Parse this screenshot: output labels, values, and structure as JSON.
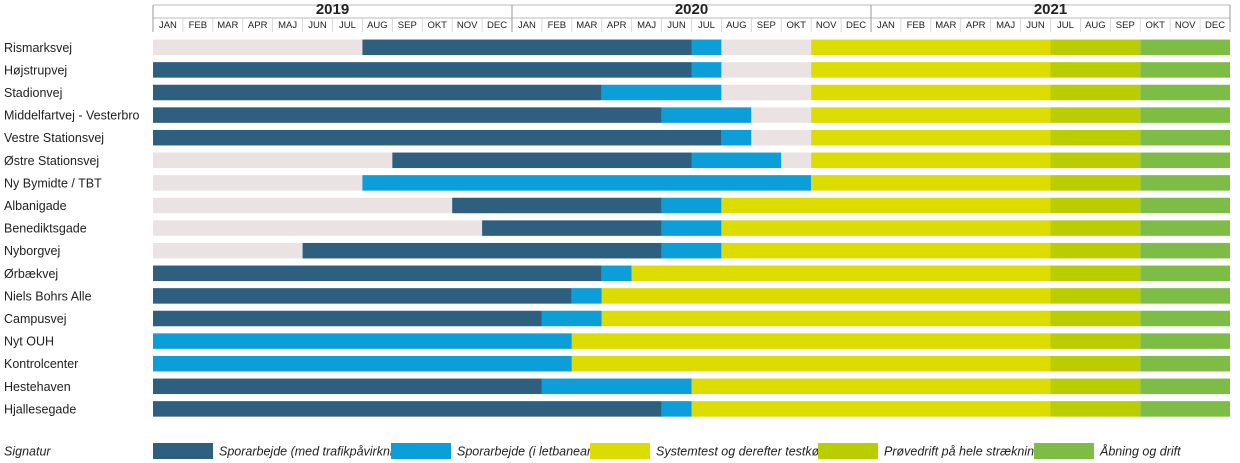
{
  "chart_data": {
    "type": "gantt",
    "years": [
      "2019",
      "2020",
      "2021"
    ],
    "months": [
      "JAN",
      "FEB",
      "MAR",
      "APR",
      "MAJ",
      "JUN",
      "JUL",
      "AUG",
      "SEP",
      "OKT",
      "NOV",
      "DEC"
    ],
    "timeline_start": "2019-01",
    "timeline_end": "2021-12",
    "phases": [
      {
        "key": "idle",
        "label": "",
        "color": "#ebe3e3"
      },
      {
        "key": "spor1",
        "label": "Sporarbejde (med trafikpåvirkning)",
        "color": "#2f5f7f"
      },
      {
        "key": "spor2",
        "label": "Sporarbejde (i letbaneareal)",
        "color": "#0b9ed8"
      },
      {
        "key": "test",
        "label": "Systemtest og derefter testkørsler",
        "color": "#dcdc00"
      },
      {
        "key": "prove",
        "label": "Prøvedrift på hele strækningen",
        "color": "#b9cd00"
      },
      {
        "key": "drift",
        "label": "Åbning og drift",
        "color": "#7dbd45"
      }
    ],
    "legend_title": "Signatur",
    "rows": [
      {
        "name": "Rismarksvej",
        "segments": [
          [
            "idle",
            "2019-01",
            "2019-07"
          ],
          [
            "spor1",
            "2019-08",
            "2020-06"
          ],
          [
            "spor2",
            "2020-07",
            "2020-07"
          ],
          [
            "idle",
            "2020-08",
            "2020-10"
          ],
          [
            "test",
            "2020-11",
            "2021-06"
          ],
          [
            "prove",
            "2021-07",
            "2021-09"
          ],
          [
            "drift",
            "2021-10",
            "2021-12"
          ]
        ]
      },
      {
        "name": "Højstrupvej",
        "segments": [
          [
            "spor1",
            "2019-01",
            "2020-06"
          ],
          [
            "spor2",
            "2020-07",
            "2020-07"
          ],
          [
            "idle",
            "2020-08",
            "2020-10"
          ],
          [
            "test",
            "2020-11",
            "2021-06"
          ],
          [
            "prove",
            "2021-07",
            "2021-09"
          ],
          [
            "drift",
            "2021-10",
            "2021-12"
          ]
        ]
      },
      {
        "name": "Stadionvej",
        "segments": [
          [
            "spor1",
            "2019-01",
            "2020-03"
          ],
          [
            "spor2",
            "2020-04",
            "2020-07"
          ],
          [
            "idle",
            "2020-08",
            "2020-10"
          ],
          [
            "test",
            "2020-11",
            "2021-06"
          ],
          [
            "prove",
            "2021-07",
            "2021-09"
          ],
          [
            "drift",
            "2021-10",
            "2021-12"
          ]
        ]
      },
      {
        "name": "Middelfartvej - Vesterbro",
        "segments": [
          [
            "spor1",
            "2019-01",
            "2020-05"
          ],
          [
            "spor2",
            "2020-06",
            "2020-08"
          ],
          [
            "idle",
            "2020-09",
            "2020-10"
          ],
          [
            "test",
            "2020-11",
            "2021-06"
          ],
          [
            "prove",
            "2021-07",
            "2021-09"
          ],
          [
            "drift",
            "2021-10",
            "2021-12"
          ]
        ]
      },
      {
        "name": "Vestre Stationsvej",
        "segments": [
          [
            "spor1",
            "2019-01",
            "2020-07"
          ],
          [
            "spor2",
            "2020-08",
            "2020-08"
          ],
          [
            "idle",
            "2020-09",
            "2020-10"
          ],
          [
            "test",
            "2020-11",
            "2021-06"
          ],
          [
            "prove",
            "2021-07",
            "2021-09"
          ],
          [
            "drift",
            "2021-10",
            "2021-12"
          ]
        ]
      },
      {
        "name": "Østre Stationsvej",
        "segments": [
          [
            "idle",
            "2019-01",
            "2019-08"
          ],
          [
            "spor1",
            "2019-09",
            "2020-06"
          ],
          [
            "spor2",
            "2020-07",
            "2020-09"
          ],
          [
            "idle",
            "2020-10",
            "2020-10"
          ],
          [
            "test",
            "2020-11",
            "2021-06"
          ],
          [
            "prove",
            "2021-07",
            "2021-09"
          ],
          [
            "drift",
            "2021-10",
            "2021-12"
          ]
        ]
      },
      {
        "name": "Ny Bymidte / TBT",
        "segments": [
          [
            "idle",
            "2019-01",
            "2019-07"
          ],
          [
            "spor2",
            "2019-08",
            "2020-10"
          ],
          [
            "test",
            "2020-11",
            "2021-06"
          ],
          [
            "prove",
            "2021-07",
            "2021-09"
          ],
          [
            "drift",
            "2021-10",
            "2021-12"
          ]
        ]
      },
      {
        "name": "Albanigade",
        "segments": [
          [
            "idle",
            "2019-01",
            "2019-10"
          ],
          [
            "spor1",
            "2019-11",
            "2020-05"
          ],
          [
            "spor2",
            "2020-06",
            "2020-07"
          ],
          [
            "test",
            "2020-08",
            "2021-06"
          ],
          [
            "prove",
            "2021-07",
            "2021-09"
          ],
          [
            "drift",
            "2021-10",
            "2021-12"
          ]
        ]
      },
      {
        "name": "Benediktsgade",
        "segments": [
          [
            "idle",
            "2019-01",
            "2019-11"
          ],
          [
            "spor1",
            "2019-12",
            "2020-05"
          ],
          [
            "spor2",
            "2020-06",
            "2020-07"
          ],
          [
            "test",
            "2020-08",
            "2021-06"
          ],
          [
            "prove",
            "2021-07",
            "2021-09"
          ],
          [
            "drift",
            "2021-10",
            "2021-12"
          ]
        ]
      },
      {
        "name": "Nyborgvej",
        "segments": [
          [
            "idle",
            "2019-01",
            "2019-05"
          ],
          [
            "spor1",
            "2019-06",
            "2020-05"
          ],
          [
            "spor2",
            "2020-06",
            "2020-07"
          ],
          [
            "test",
            "2020-08",
            "2021-06"
          ],
          [
            "prove",
            "2021-07",
            "2021-09"
          ],
          [
            "drift",
            "2021-10",
            "2021-12"
          ]
        ]
      },
      {
        "name": "Ørbækvej",
        "segments": [
          [
            "spor1",
            "2019-01",
            "2020-03"
          ],
          [
            "spor2",
            "2020-04",
            "2020-04"
          ],
          [
            "test",
            "2020-05",
            "2021-06"
          ],
          [
            "prove",
            "2021-07",
            "2021-09"
          ],
          [
            "drift",
            "2021-10",
            "2021-12"
          ]
        ]
      },
      {
        "name": "Niels Bohrs Alle",
        "segments": [
          [
            "spor1",
            "2019-01",
            "2020-02"
          ],
          [
            "spor2",
            "2020-03",
            "2020-03"
          ],
          [
            "test",
            "2020-04",
            "2021-06"
          ],
          [
            "prove",
            "2021-07",
            "2021-09"
          ],
          [
            "drift",
            "2021-10",
            "2021-12"
          ]
        ]
      },
      {
        "name": "Campusvej",
        "segments": [
          [
            "spor1",
            "2019-01",
            "2020-01"
          ],
          [
            "spor2",
            "2020-02",
            "2020-03"
          ],
          [
            "test",
            "2020-04",
            "2021-06"
          ],
          [
            "prove",
            "2021-07",
            "2021-09"
          ],
          [
            "drift",
            "2021-10",
            "2021-12"
          ]
        ]
      },
      {
        "name": "Nyt OUH",
        "segments": [
          [
            "spor2",
            "2019-01",
            "2020-02"
          ],
          [
            "test",
            "2020-03",
            "2021-06"
          ],
          [
            "prove",
            "2021-07",
            "2021-09"
          ],
          [
            "drift",
            "2021-10",
            "2021-12"
          ]
        ]
      },
      {
        "name": "Kontrolcenter",
        "segments": [
          [
            "spor2",
            "2019-01",
            "2020-02"
          ],
          [
            "test",
            "2020-03",
            "2021-06"
          ],
          [
            "prove",
            "2021-07",
            "2021-09"
          ],
          [
            "drift",
            "2021-10",
            "2021-12"
          ]
        ]
      },
      {
        "name": "Hestehaven",
        "segments": [
          [
            "spor1",
            "2019-01",
            "2020-01"
          ],
          [
            "spor2",
            "2020-02",
            "2020-06"
          ],
          [
            "test",
            "2020-07",
            "2021-06"
          ],
          [
            "prove",
            "2021-07",
            "2021-09"
          ],
          [
            "drift",
            "2021-10",
            "2021-12"
          ]
        ]
      },
      {
        "name": "Hjallesegade",
        "segments": [
          [
            "spor1",
            "2019-01",
            "2020-05"
          ],
          [
            "spor2",
            "2020-06",
            "2020-06"
          ],
          [
            "test",
            "2020-07",
            "2021-06"
          ],
          [
            "prove",
            "2021-07",
            "2021-09"
          ],
          [
            "drift",
            "2021-10",
            "2021-12"
          ]
        ]
      }
    ]
  }
}
